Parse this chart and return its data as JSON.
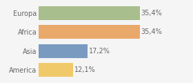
{
  "categories": [
    "America",
    "Asia",
    "Africa",
    "Europa"
  ],
  "values": [
    12.1,
    17.2,
    35.4,
    35.4
  ],
  "labels": [
    "12,1%",
    "17,2%",
    "35,4%",
    "35,4%"
  ],
  "bar_colors": [
    "#f0c96a",
    "#7a9bbf",
    "#e8a96a",
    "#a8be8c"
  ],
  "background_color": "#f5f5f5",
  "xlim": [
    0,
    46
  ],
  "bar_height": 0.72,
  "label_fontsize": 7.0,
  "tick_fontsize": 7.0,
  "figwidth": 2.8,
  "figheight": 1.2,
  "dpi": 100
}
